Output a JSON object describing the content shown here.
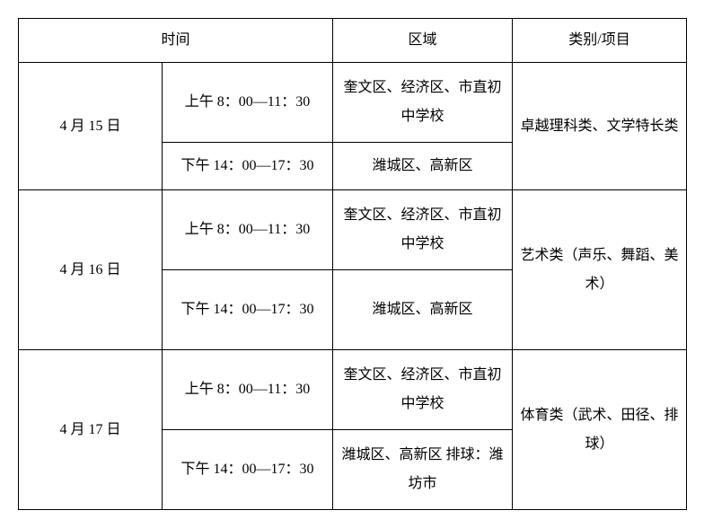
{
  "header": {
    "time": "时间",
    "region": "区域",
    "category": "类别/项目"
  },
  "rows": [
    {
      "date": "4 月 15 日",
      "am_time": "上午 8：00—11：30",
      "am_region": "奎文区、经济区、市直初中学校",
      "pm_time": "下午 14：00—17：30",
      "pm_region": "潍城区、高新区",
      "category": "卓越理科类、文学特长类"
    },
    {
      "date": "4 月 16 日",
      "am_time": "上午 8：00—11：30",
      "am_region": "奎文区、经济区、市直初中学校",
      "pm_time": "下午 14：00—17：30",
      "pm_region": "潍城区、高新区",
      "category": "艺术类（声乐、舞蹈、美术）"
    },
    {
      "date": "4 月 17 日",
      "am_time": "上午 8：00—11：30",
      "am_region": "奎文区、经济区、市直初中学校",
      "pm_time": "下午 14：00—17：30",
      "pm_region": "潍城区、高新区 排球：潍坊市",
      "category": "体育类（武术、田径、排球）"
    }
  ]
}
